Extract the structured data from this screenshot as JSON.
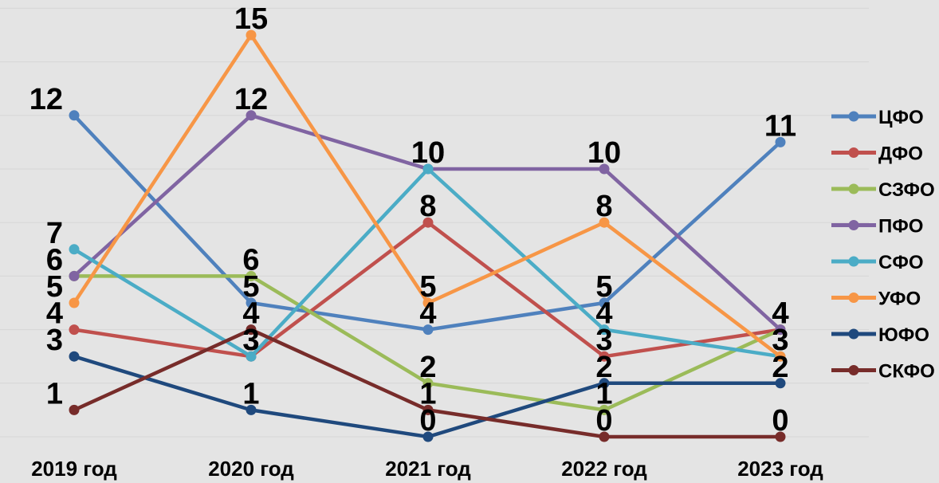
{
  "chart_data": {
    "type": "line",
    "categories": [
      "2019 год",
      "2020 год",
      "2021 год",
      "2022 год",
      "2023 год"
    ],
    "ylim": [
      0,
      15
    ],
    "grid": true,
    "legend_position": "right",
    "series": [
      {
        "name": "ЦФО",
        "color": "#4f81bd",
        "values": [
          12,
          5,
          4,
          5,
          11
        ]
      },
      {
        "name": "ДФО",
        "color": "#c0504d",
        "values": [
          4,
          3,
          8,
          3,
          4
        ]
      },
      {
        "name": "СЗФО",
        "color": "#9bbb59",
        "values": [
          6,
          6,
          2,
          1,
          4
        ]
      },
      {
        "name": "ПФО",
        "color": "#8064a2",
        "values": [
          6,
          12,
          10,
          10,
          4
        ]
      },
      {
        "name": "СФО",
        "color": "#4bacc6",
        "values": [
          7,
          3,
          10,
          4,
          3
        ]
      },
      {
        "name": "УФО",
        "color": "#f79646",
        "values": [
          5,
          15,
          5,
          8,
          3
        ]
      },
      {
        "name": "ЮФО",
        "color": "#1f497d",
        "values": [
          3,
          1,
          0,
          2,
          2
        ]
      },
      {
        "name": "СКФО",
        "color": "#772c2a",
        "values": [
          1,
          4,
          1,
          0,
          0
        ]
      }
    ]
  }
}
